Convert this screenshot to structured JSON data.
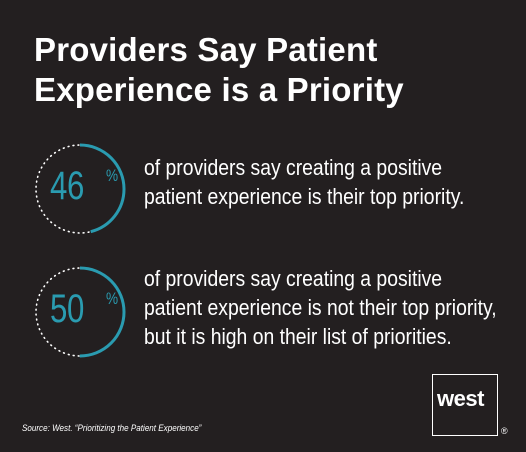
{
  "title_line1": "Providers Say Patient",
  "title_line2": "Experience is a Priority",
  "colors": {
    "background": "#231f20",
    "accent": "#2a9bb0",
    "text": "#ffffff"
  },
  "chart_data": {
    "type": "pie",
    "stats": [
      {
        "value": 46,
        "value_label": "46",
        "unit": "%",
        "description_lines": [
          "of providers say creating a positive",
          "patient experience is their top priority."
        ]
      },
      {
        "value": 50,
        "value_label": "50",
        "unit": "%",
        "description_lines": [
          "of providers say creating a positive",
          "patient experience is not their top priority,",
          "but it is high on their list of priorities."
        ]
      }
    ]
  },
  "source": "Source:  West. “Prioritizing the Patient Experience”",
  "logo": {
    "text": "west",
    "registered": "®"
  }
}
